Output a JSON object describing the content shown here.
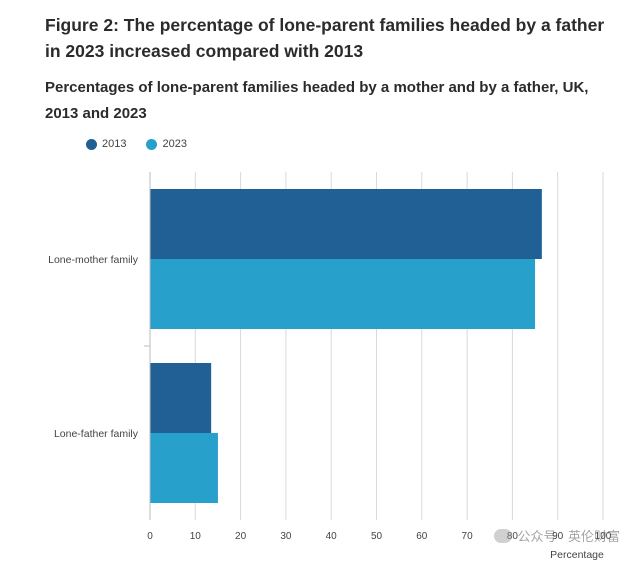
{
  "figure": {
    "title": "Figure 2: The percentage of lone-parent families headed by a father in 2023 increased compared with 2013",
    "subtitle": "Percentages of lone-parent families headed by a mother and by a father, UK, 2013 and 2023"
  },
  "legend": {
    "items": [
      {
        "label": "2013",
        "color": "#206095"
      },
      {
        "label": "2023",
        "color": "#27a0cc"
      }
    ]
  },
  "watermark": {
    "icon": "wechat-icon",
    "text": "公众号 · 英伦财富"
  },
  "chart_data": {
    "type": "bar",
    "orientation": "horizontal",
    "categories": [
      "Lone-mother family",
      "Lone-father family"
    ],
    "series": [
      {
        "name": "2013",
        "color": "#206095",
        "values": [
          86.5,
          13.5
        ]
      },
      {
        "name": "2023",
        "color": "#27a0cc",
        "values": [
          85,
          15
        ]
      }
    ],
    "title": "Figure 2: The percentage of lone-parent families headed by a father in 2023 increased compared with 2013",
    "subtitle": "Percentages of lone-parent families headed by a mother and by a father, UK, 2013 and 2023",
    "xlabel": "Percentage",
    "ylabel": "",
    "xlim": [
      0,
      100
    ],
    "xticks": [
      0,
      10,
      20,
      30,
      40,
      50,
      60,
      70,
      80,
      90,
      100
    ],
    "grid": true,
    "legend_position": "top-left"
  }
}
